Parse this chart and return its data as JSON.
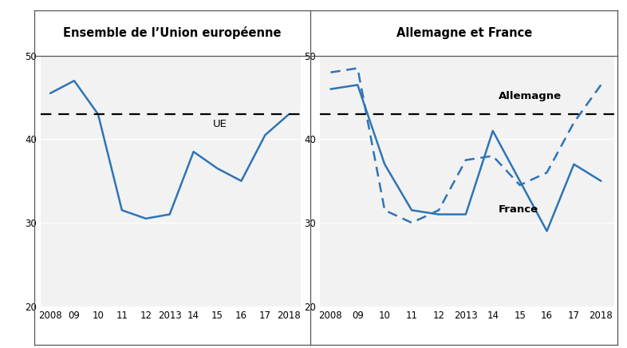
{
  "years": [
    2008,
    2009,
    2010,
    2011,
    2012,
    2013,
    2014,
    2015,
    2016,
    2017,
    2018
  ],
  "ue_values": [
    45.5,
    47.0,
    43.0,
    31.5,
    30.5,
    31.0,
    38.5,
    36.5,
    35.0,
    40.5,
    43.0
  ],
  "france_values": [
    46.0,
    46.5,
    37.0,
    31.5,
    31.0,
    31.0,
    41.0,
    35.0,
    29.0,
    37.0,
    35.0
  ],
  "allemagne_values": [
    48.0,
    48.5,
    31.5,
    30.0,
    31.5,
    37.5,
    38.0,
    34.5,
    36.0,
    42.0,
    46.5
  ],
  "ue_ref_line": 43.0,
  "ylim": [
    20,
    50
  ],
  "yticks": [
    20,
    30,
    40,
    50
  ],
  "xtick_labels": [
    "2008",
    "09",
    "10",
    "11",
    "12",
    "2013",
    "14",
    "15",
    "16",
    "17",
    "2018"
  ],
  "title_left": "Ensemble de l’Union européenne",
  "title_right": "Allemagne et France",
  "label_ue": "UE",
  "label_france": "France",
  "label_allemagne": "Allemagne",
  "line_color": "#2e74b5",
  "ref_line_color": "#000000",
  "plot_bg_color": "#f2f2f2",
  "fig_bg_color": "#ffffff",
  "title_fontsize": 10.5,
  "label_fontsize": 9.5,
  "tick_fontsize": 8.5
}
